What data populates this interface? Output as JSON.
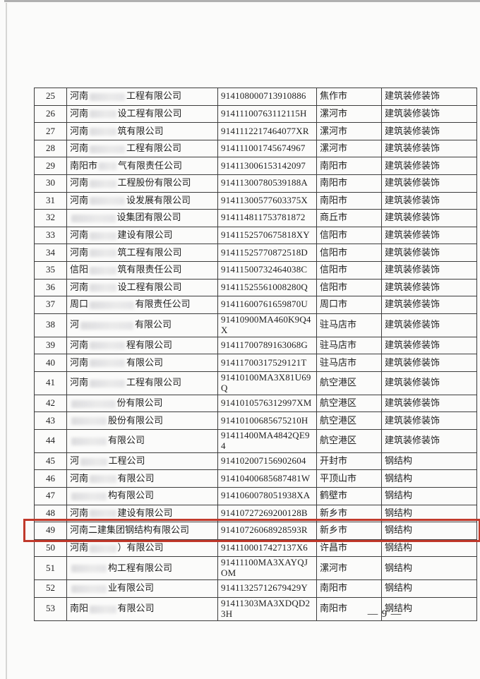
{
  "document": {
    "page_number": "9",
    "page_number_label": "— 9 —"
  },
  "colors": {
    "highlight_border": "#c0392b",
    "table_border": "#3c3c3c",
    "text": "#1f1f1f",
    "page_background": "#fbfbfa"
  },
  "table": {
    "column_names": [
      "row-number",
      "company-name",
      "credit-code",
      "city",
      "category"
    ],
    "rows": [
      {
        "no": "25",
        "name_pre": "河南",
        "name_gap": 4,
        "name_suf": "工程有限公司",
        "code": "914108000713910886",
        "city": "焦作市",
        "cat": "建筑装修装饰",
        "highlight": false
      },
      {
        "no": "26",
        "name_pre": "河南",
        "name_gap": 3,
        "name_suf": "设工程有限公司",
        "code": "91411100763112115H",
        "city": "漯河市",
        "cat": "建筑装修装饰",
        "highlight": false
      },
      {
        "no": "27",
        "name_pre": "河南",
        "name_gap": 3,
        "name_suf": "筑有限公司",
        "code": "9141112217464077XR",
        "city": "漯河市",
        "cat": "建筑装修装饰",
        "highlight": false
      },
      {
        "no": "28",
        "name_pre": "河南",
        "name_gap": 4,
        "name_suf": "工程有限公司",
        "code": "914111001745674967",
        "city": "漯河市",
        "cat": "建筑装修装饰",
        "highlight": false
      },
      {
        "no": "29",
        "name_pre": "南阳市",
        "name_gap": 2,
        "name_suf": "气有限责任公司",
        "code": "914113006153142097",
        "city": "南阳市",
        "cat": "建筑装修装饰",
        "highlight": false
      },
      {
        "no": "30",
        "name_pre": "河南",
        "name_gap": 3,
        "name_suf": "工程股份有限公司",
        "code": "91411300780539188A",
        "city": "南阳市",
        "cat": "建筑装修装饰",
        "highlight": false
      },
      {
        "no": "31",
        "name_pre": "河南",
        "name_gap": 4,
        "name_suf": "设发展有限公司",
        "code": "91411300577603375X",
        "city": "南阳市",
        "cat": "建筑装修装饰",
        "highlight": false
      },
      {
        "no": "32",
        "name_pre": "",
        "name_gap": 5,
        "name_suf": "设集团有限公司",
        "code": "914114811753781872",
        "city": "商丘市",
        "cat": "建筑装修装饰",
        "highlight": false
      },
      {
        "no": "33",
        "name_pre": "河南",
        "name_gap": 3,
        "name_suf": "建设有限公司",
        "code": "9141152570675818XY",
        "city": "信阳市",
        "cat": "建筑装修装饰",
        "highlight": false
      },
      {
        "no": "34",
        "name_pre": "河南",
        "name_gap": 3,
        "name_suf": "筑工程有限公司",
        "code": "91411525770872518D",
        "city": "信阳市",
        "cat": "建筑装修装饰",
        "highlight": false
      },
      {
        "no": "35",
        "name_pre": "信阳",
        "name_gap": 3,
        "name_suf": "筑有限责任公司",
        "code": "91411500732464038C",
        "city": "信阳市",
        "cat": "建筑装修装饰",
        "highlight": false
      },
      {
        "no": "36",
        "name_pre": "河南",
        "name_gap": 3,
        "name_suf": "设工程有限公司",
        "code": "91411525561008280Q",
        "city": "信阳市",
        "cat": "建筑装修装饰",
        "highlight": false
      },
      {
        "no": "37",
        "name_pre": "周口",
        "name_gap": 5,
        "name_suf": "有限责任公司",
        "code": "91411600761659870U",
        "city": "周口市",
        "cat": "建筑装修装饰",
        "highlight": false
      },
      {
        "no": "38",
        "name_pre": "河",
        "name_gap": 6,
        "name_suf": "有限公司",
        "code": "91410900MA460K9Q4X",
        "city": "驻马店市",
        "cat": "建筑装修装饰",
        "highlight": false
      },
      {
        "no": "39",
        "name_pre": "河南",
        "name_gap": 4,
        "name_suf": "程有限公司",
        "code": "91411700789163068G",
        "city": "驻马店市",
        "cat": "建筑装修装饰",
        "highlight": false
      },
      {
        "no": "40",
        "name_pre": "河南",
        "name_gap": 4,
        "name_suf": "有限公司",
        "code": "91411700317529121T",
        "city": "驻马店市",
        "cat": "建筑装修装饰",
        "highlight": false
      },
      {
        "no": "41",
        "name_pre": "河南",
        "name_gap": 4,
        "name_suf": "工程有限公司",
        "code": "91410100MA3X81U69Q",
        "city": "航空港区",
        "cat": "建筑装修装饰",
        "highlight": false
      },
      {
        "no": "42",
        "name_pre": "",
        "name_gap": 5,
        "name_suf": "份有限公司",
        "code": "9141010576312997XM",
        "city": "航空港区",
        "cat": "建筑装修装饰",
        "highlight": false
      },
      {
        "no": "43",
        "name_pre": "",
        "name_gap": 4,
        "name_suf": "股份有限公司",
        "code": "91410100685675210H",
        "city": "航空港区",
        "cat": "建筑装修装饰",
        "highlight": false
      },
      {
        "no": "44",
        "name_pre": "",
        "name_gap": 4,
        "name_suf": "有限公司",
        "code": "91411400MA4842QE94",
        "city": "航空港区",
        "cat": "建筑装修装饰",
        "highlight": false
      },
      {
        "no": "45",
        "name_pre": "河",
        "name_gap": 3,
        "name_suf": "工程公司",
        "code": "914102007156902604",
        "city": "开封市",
        "cat": "钢结构",
        "highlight": false
      },
      {
        "no": "46",
        "name_pre": "河南",
        "name_gap": 3,
        "name_suf": "有限公司",
        "code": "91410400685687481W",
        "city": "平顶山市",
        "cat": "钢结构",
        "highlight": false
      },
      {
        "no": "47",
        "name_pre": "",
        "name_gap": 4,
        "name_suf": "构有限公司",
        "code": "9141060078051938XA",
        "city": "鹤壁市",
        "cat": "钢结构",
        "highlight": false
      },
      {
        "no": "48",
        "name_pre": "河南",
        "name_gap": 3,
        "name_suf": "建设有限公司",
        "code": "91410727269200128B",
        "city": "新乡市",
        "cat": "钢结构",
        "highlight": false
      },
      {
        "no": "49",
        "name_pre": "河南二建集团钢结构有限公司",
        "name_gap": 0,
        "name_suf": "",
        "code": "91410726068928593R",
        "city": "新乡市",
        "cat": "钢结构",
        "highlight": true
      },
      {
        "no": "50",
        "name_pre": "河南",
        "name_gap": 3,
        "name_suf": "）有限公司",
        "code": "9141100017427137X6",
        "city": "许昌市",
        "cat": "钢结构",
        "highlight": false
      },
      {
        "no": "51",
        "name_pre": "",
        "name_gap": 4,
        "name_suf": "构工程有限公司",
        "code": "91411100MA3XAYQJOM",
        "city": "漯河市",
        "cat": "钢结构",
        "highlight": false
      },
      {
        "no": "52",
        "name_pre": "",
        "name_gap": 4,
        "name_suf": "业有限公司",
        "code": "91411325712679429Y",
        "city": "南阳市",
        "cat": "钢结构",
        "highlight": false
      },
      {
        "no": "53",
        "name_pre": "南阳",
        "name_gap": 3,
        "name_suf": "有限公司",
        "code": "91411303MA3XDQD23H",
        "city": "南阳市",
        "cat": "钢结构",
        "highlight": false
      }
    ]
  }
}
